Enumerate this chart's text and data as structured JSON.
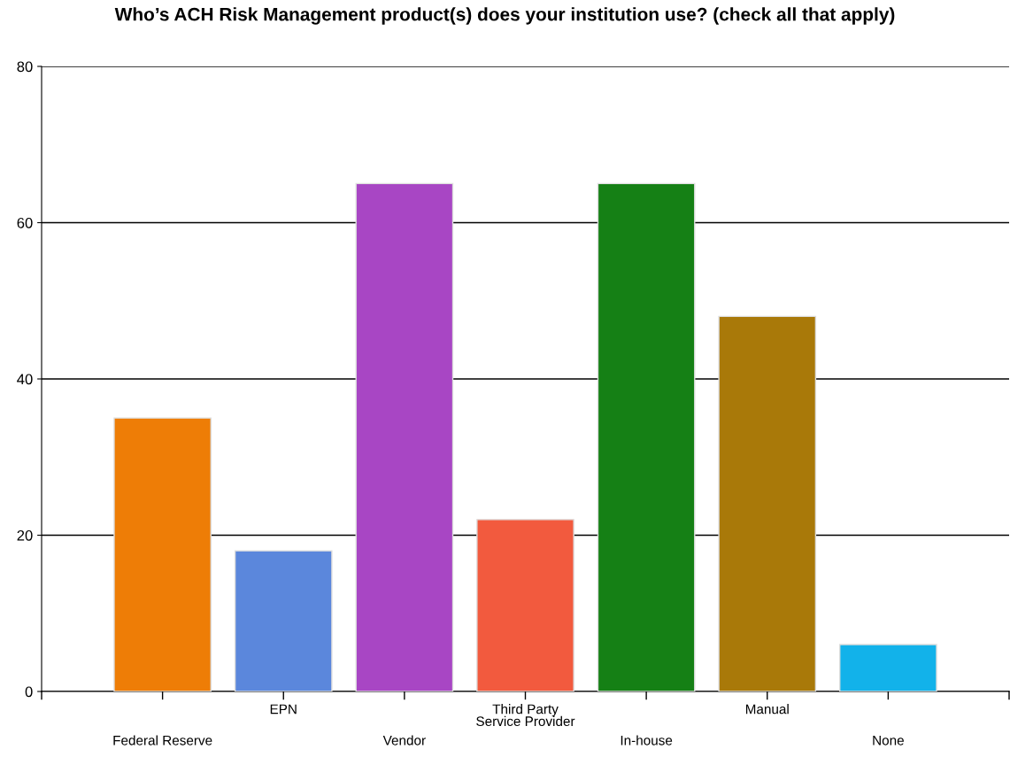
{
  "chart_data": {
    "type": "bar",
    "title": "Who’s ACH Risk Management product(s) does your institution use? (check all that apply)",
    "categories": [
      "Federal Reserve",
      "EPN",
      "Vendor",
      "Third Party\nService Provider",
      "In-house",
      "Manual",
      "None"
    ],
    "values": [
      35,
      18,
      65,
      22,
      65,
      48,
      6
    ],
    "colors": [
      "#ee7d06",
      "#5b87dc",
      "#a846c4",
      "#f25a3e",
      "#158015",
      "#a97909",
      "#12b2ea"
    ],
    "ylim": [
      0,
      80
    ],
    "yticks": [
      0,
      20,
      40,
      60,
      80
    ],
    "grid": "y"
  }
}
